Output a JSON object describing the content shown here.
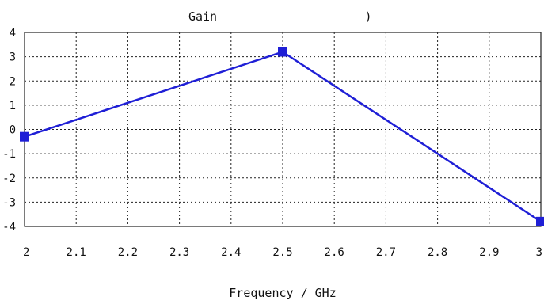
{
  "chart_data": {
    "type": "line",
    "title": "Gain",
    "title_suffix": ")",
    "xlabel": "Frequency / GHz",
    "ylabel": "",
    "xlim": [
      2,
      3
    ],
    "ylim": [
      -4,
      4
    ],
    "x_ticks": [
      "2",
      "2.1",
      "2.2",
      "2.3",
      "2.4",
      "2.5",
      "2.6",
      "2.7",
      "2.8",
      "2.9",
      "3"
    ],
    "y_ticks": [
      "4",
      "3",
      "2",
      "1",
      "0",
      "-1",
      "-2",
      "-3",
      "-4"
    ],
    "grid": true,
    "legend": "none",
    "series": [
      {
        "color": "#1f1fd6",
        "marker": "square",
        "x": [
          2.0,
          2.5,
          3.0
        ],
        "y": [
          -0.3,
          3.2,
          -3.8
        ]
      }
    ]
  }
}
